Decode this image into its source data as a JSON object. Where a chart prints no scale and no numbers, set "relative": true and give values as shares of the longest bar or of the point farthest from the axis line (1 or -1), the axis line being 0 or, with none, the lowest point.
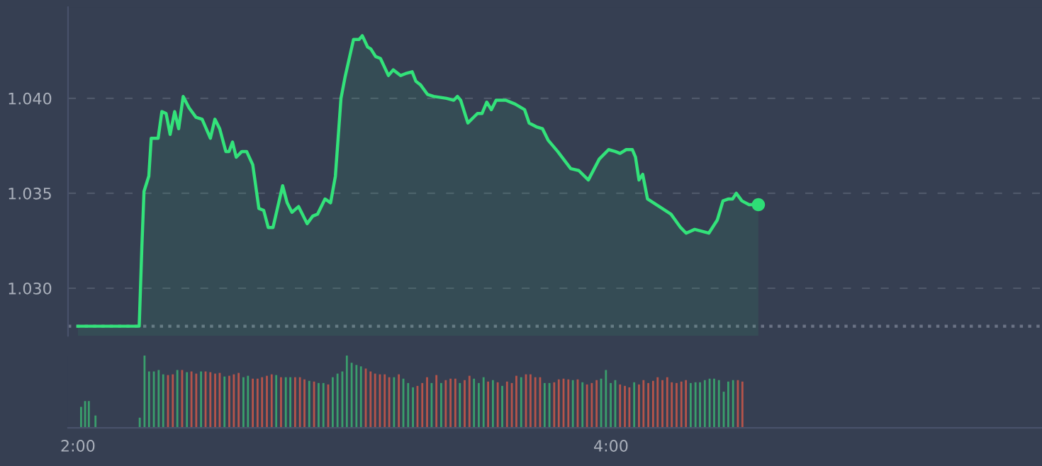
{
  "chart_data": [
    {
      "type": "area",
      "xlim": [
        1.963,
        5.617
      ],
      "ylim": [
        1.0275,
        1.0448
      ],
      "yticks": [
        {
          "value": 1.03,
          "label": "1.030"
        },
        {
          "value": 1.035,
          "label": "1.035"
        },
        {
          "value": 1.04,
          "label": "1.040"
        }
      ],
      "tick_labels": "y",
      "grid": "y",
      "ref_lines": [
        {
          "axis": "y",
          "value": 1.028,
          "label": null,
          "color": "#6b7385",
          "line_style": "dotted"
        }
      ],
      "series": [
        {
          "type": "area",
          "color": "#33e27a",
          "x": [
            2.0,
            2.23,
            2.24,
            2.248,
            2.266,
            2.275,
            2.301,
            2.315,
            2.331,
            2.346,
            2.363,
            2.378,
            2.395,
            2.417,
            2.443,
            2.466,
            2.497,
            2.514,
            2.532,
            2.555,
            2.567,
            2.58,
            2.594,
            2.615,
            2.633,
            2.656,
            2.679,
            2.697,
            2.714,
            2.732,
            2.768,
            2.785,
            2.803,
            2.828,
            2.86,
            2.881,
            2.899,
            2.927,
            2.948,
            2.966,
            2.987,
            3.002,
            3.034,
            3.055,
            3.067,
            3.087,
            3.099,
            3.117,
            3.135,
            3.165,
            3.183,
            3.211,
            3.229,
            3.254,
            3.268,
            3.286,
            3.312,
            3.335,
            3.383,
            3.41,
            3.424,
            3.436,
            3.463,
            3.499,
            3.516,
            3.534,
            3.551,
            3.569,
            3.605,
            3.64,
            3.676,
            3.693,
            3.72,
            3.743,
            3.764,
            3.8,
            3.849,
            3.879,
            3.915,
            3.956,
            3.991,
            4.016,
            4.034,
            4.057,
            4.08,
            4.092,
            4.105,
            4.119,
            4.137,
            4.181,
            4.225,
            4.261,
            4.282,
            4.314,
            4.367,
            4.399,
            4.42,
            4.441,
            4.456,
            4.47,
            4.491,
            4.518,
            4.553
          ],
          "values": [
            1.028,
            1.028,
            1.0322,
            1.0351,
            1.0359,
            1.0379,
            1.0379,
            1.0393,
            1.0392,
            1.0381,
            1.0393,
            1.0384,
            1.0401,
            1.0395,
            1.039,
            1.0389,
            1.0379,
            1.0389,
            1.0384,
            1.0372,
            1.0372,
            1.0377,
            1.0369,
            1.0372,
            1.0372,
            1.0365,
            1.0342,
            1.0341,
            1.0332,
            1.0332,
            1.0354,
            1.0345,
            1.034,
            1.0343,
            1.0334,
            1.0338,
            1.0339,
            1.0347,
            1.0345,
            1.0359,
            1.04,
            1.0411,
            1.0431,
            1.0431,
            1.0433,
            1.0427,
            1.0426,
            1.0422,
            1.0421,
            1.0412,
            1.0415,
            1.0412,
            1.0413,
            1.0414,
            1.0409,
            1.0407,
            1.0402,
            1.0401,
            1.04,
            1.0399,
            1.0401,
            1.0399,
            1.0387,
            1.0392,
            1.0392,
            1.0398,
            1.0394,
            1.0399,
            1.0399,
            1.0397,
            1.0394,
            1.0387,
            1.0385,
            1.0384,
            1.0378,
            1.0372,
            1.0363,
            1.0362,
            1.0357,
            1.0368,
            1.0373,
            1.0372,
            1.0371,
            1.0373,
            1.0373,
            1.0369,
            1.0357,
            1.036,
            1.0347,
            1.0343,
            1.0339,
            1.0332,
            1.0329,
            1.0331,
            1.0329,
            1.0336,
            1.0346,
            1.0347,
            1.0347,
            1.035,
            1.0346,
            1.0344,
            1.0344
          ]
        },
        {
          "type": "scatter",
          "color": "#2ede76",
          "marker": "circle",
          "x": [
            4.553
          ],
          "values": [
            1.0344
          ]
        }
      ]
    },
    {
      "type": "bar",
      "relative": true,
      "xlim": [
        1.963,
        5.617
      ],
      "xticks": [
        {
          "value": 2,
          "label": "2:00"
        },
        {
          "value": 4,
          "label": "4:00"
        }
      ],
      "tick_labels": "x",
      "x": [
        2.012,
        2.027,
        2.041,
        2.066,
        2.232,
        2.25,
        2.267,
        2.285,
        2.303,
        2.32,
        2.338,
        2.356,
        2.373,
        2.391,
        2.409,
        2.426,
        2.444,
        2.462,
        2.479,
        2.497,
        2.515,
        2.532,
        2.55,
        2.568,
        2.585,
        2.603,
        2.621,
        2.638,
        2.656,
        2.674,
        2.691,
        2.709,
        2.727,
        2.744,
        2.762,
        2.78,
        2.797,
        2.815,
        2.833,
        2.85,
        2.868,
        2.886,
        2.903,
        2.921,
        2.939,
        2.956,
        2.974,
        2.992,
        3.009,
        3.027,
        3.045,
        3.062,
        3.08,
        3.098,
        3.115,
        3.133,
        3.151,
        3.168,
        3.186,
        3.204,
        3.221,
        3.239,
        3.257,
        3.274,
        3.292,
        3.31,
        3.327,
        3.345,
        3.363,
        3.38,
        3.398,
        3.416,
        3.433,
        3.451,
        3.469,
        3.486,
        3.504,
        3.522,
        3.539,
        3.557,
        3.575,
        3.592,
        3.61,
        3.628,
        3.645,
        3.663,
        3.681,
        3.698,
        3.716,
        3.734,
        3.751,
        3.769,
        3.787,
        3.804,
        3.822,
        3.84,
        3.857,
        3.875,
        3.893,
        3.91,
        3.928,
        3.946,
        3.963,
        3.981,
        3.999,
        4.016,
        4.034,
        4.052,
        4.069,
        4.087,
        4.105,
        4.122,
        4.14,
        4.158,
        4.175,
        4.193,
        4.211,
        4.228,
        4.246,
        4.264,
        4.281,
        4.299,
        4.317,
        4.334,
        4.352,
        4.37,
        4.387,
        4.405,
        4.423,
        4.44,
        4.458,
        4.476,
        4.493
      ],
      "values": [
        0.29,
        0.37,
        0.37,
        0.17,
        0.14,
        1.0,
        0.78,
        0.78,
        0.8,
        0.74,
        0.73,
        0.74,
        0.8,
        0.8,
        0.77,
        0.78,
        0.75,
        0.78,
        0.78,
        0.77,
        0.75,
        0.76,
        0.71,
        0.72,
        0.74,
        0.76,
        0.7,
        0.72,
        0.68,
        0.68,
        0.7,
        0.72,
        0.74,
        0.73,
        0.7,
        0.7,
        0.7,
        0.7,
        0.7,
        0.67,
        0.65,
        0.64,
        0.62,
        0.62,
        0.6,
        0.7,
        0.75,
        0.78,
        1.0,
        0.9,
        0.87,
        0.85,
        0.82,
        0.78,
        0.75,
        0.74,
        0.74,
        0.7,
        0.7,
        0.74,
        0.68,
        0.62,
        0.56,
        0.58,
        0.62,
        0.7,
        0.62,
        0.73,
        0.62,
        0.66,
        0.68,
        0.68,
        0.62,
        0.66,
        0.72,
        0.68,
        0.62,
        0.7,
        0.64,
        0.66,
        0.63,
        0.58,
        0.64,
        0.62,
        0.72,
        0.7,
        0.74,
        0.74,
        0.7,
        0.7,
        0.62,
        0.62,
        0.63,
        0.67,
        0.68,
        0.67,
        0.66,
        0.67,
        0.63,
        0.6,
        0.62,
        0.66,
        0.68,
        0.8,
        0.62,
        0.66,
        0.6,
        0.58,
        0.56,
        0.63,
        0.6,
        0.66,
        0.62,
        0.65,
        0.7,
        0.66,
        0.7,
        0.63,
        0.62,
        0.64,
        0.66,
        0.62,
        0.63,
        0.63,
        0.66,
        0.68,
        0.68,
        0.66,
        0.5,
        0.64,
        0.66,
        0.66,
        0.64
      ],
      "colors": [
        "#3a9e6c",
        "#3a9e6c",
        "#3a9e6c",
        "#3a9e6c",
        "#3a9e6c",
        "#3a9e6c",
        "#3a9e6c",
        "#3a9e6c",
        "#3a9e6c",
        "#3a9e6c",
        "#b5544b",
        "#b5544b",
        "#3a9e6c",
        "#b5544b",
        "#3a9e6c",
        "#b5544b",
        "#b5544b",
        "#3a9e6c",
        "#b5544b",
        "#b5544b",
        "#b5544b",
        "#b5544b",
        "#3a9e6c",
        "#b5544b",
        "#b5544b",
        "#b5544b",
        "#3a9e6c",
        "#3a9e6c",
        "#b5544b",
        "#b5544b",
        "#b5544b",
        "#b5544b",
        "#b5544b",
        "#3a9e6c",
        "#b5544b",
        "#3a9e6c",
        "#3a9e6c",
        "#b5544b",
        "#b5544b",
        "#b5544b",
        "#3a9e6c",
        "#b5544b",
        "#3a9e6c",
        "#3a9e6c",
        "#b5544b",
        "#3a9e6c",
        "#3a9e6c",
        "#3a9e6c",
        "#3a9e6c",
        "#3a9e6c",
        "#3a9e6c",
        "#3a9e6c",
        "#b5544b",
        "#b5544b",
        "#b5544b",
        "#b5544b",
        "#b5544b",
        "#b5544b",
        "#3a9e6c",
        "#b5544b",
        "#3a9e6c",
        "#3a9e6c",
        "#3a9e6c",
        "#b5544b",
        "#b5544b",
        "#b5544b",
        "#3a9e6c",
        "#b5544b",
        "#3a9e6c",
        "#b5544b",
        "#b5544b",
        "#b5544b",
        "#3a9e6c",
        "#b5544b",
        "#b5544b",
        "#3a9e6c",
        "#3a9e6c",
        "#3a9e6c",
        "#b5544b",
        "#3a9e6c",
        "#b5544b",
        "#3a9e6c",
        "#b5544b",
        "#b5544b",
        "#b5544b",
        "#3a9e6c",
        "#b5544b",
        "#b5544b",
        "#b5544b",
        "#b5544b",
        "#3a9e6c",
        "#3a9e6c",
        "#b5544b",
        "#b5544b",
        "#b5544b",
        "#b5544b",
        "#3a9e6c",
        "#b5544b",
        "#3a9e6c",
        "#b5544b",
        "#b5544b",
        "#b5544b",
        "#3a9e6c",
        "#3a9e6c",
        "#3a9e6c",
        "#3a9e6c",
        "#b5544b",
        "#b5544b",
        "#b5544b",
        "#3a9e6c",
        "#b5544b",
        "#b5544b",
        "#b5544b",
        "#b5544b",
        "#b5544b",
        "#b5544b",
        "#b5544b",
        "#b5544b",
        "#b5544b",
        "#b5544b",
        "#b5544b",
        "#3a9e6c",
        "#3a9e6c",
        "#3a9e6c",
        "#3a9e6c",
        "#3a9e6c",
        "#3a9e6c",
        "#3a9e6c",
        "#3a9e6c",
        "#3a9e6c",
        "#3a9e6c",
        "#b5544b",
        "#b5544b"
      ]
    }
  ]
}
